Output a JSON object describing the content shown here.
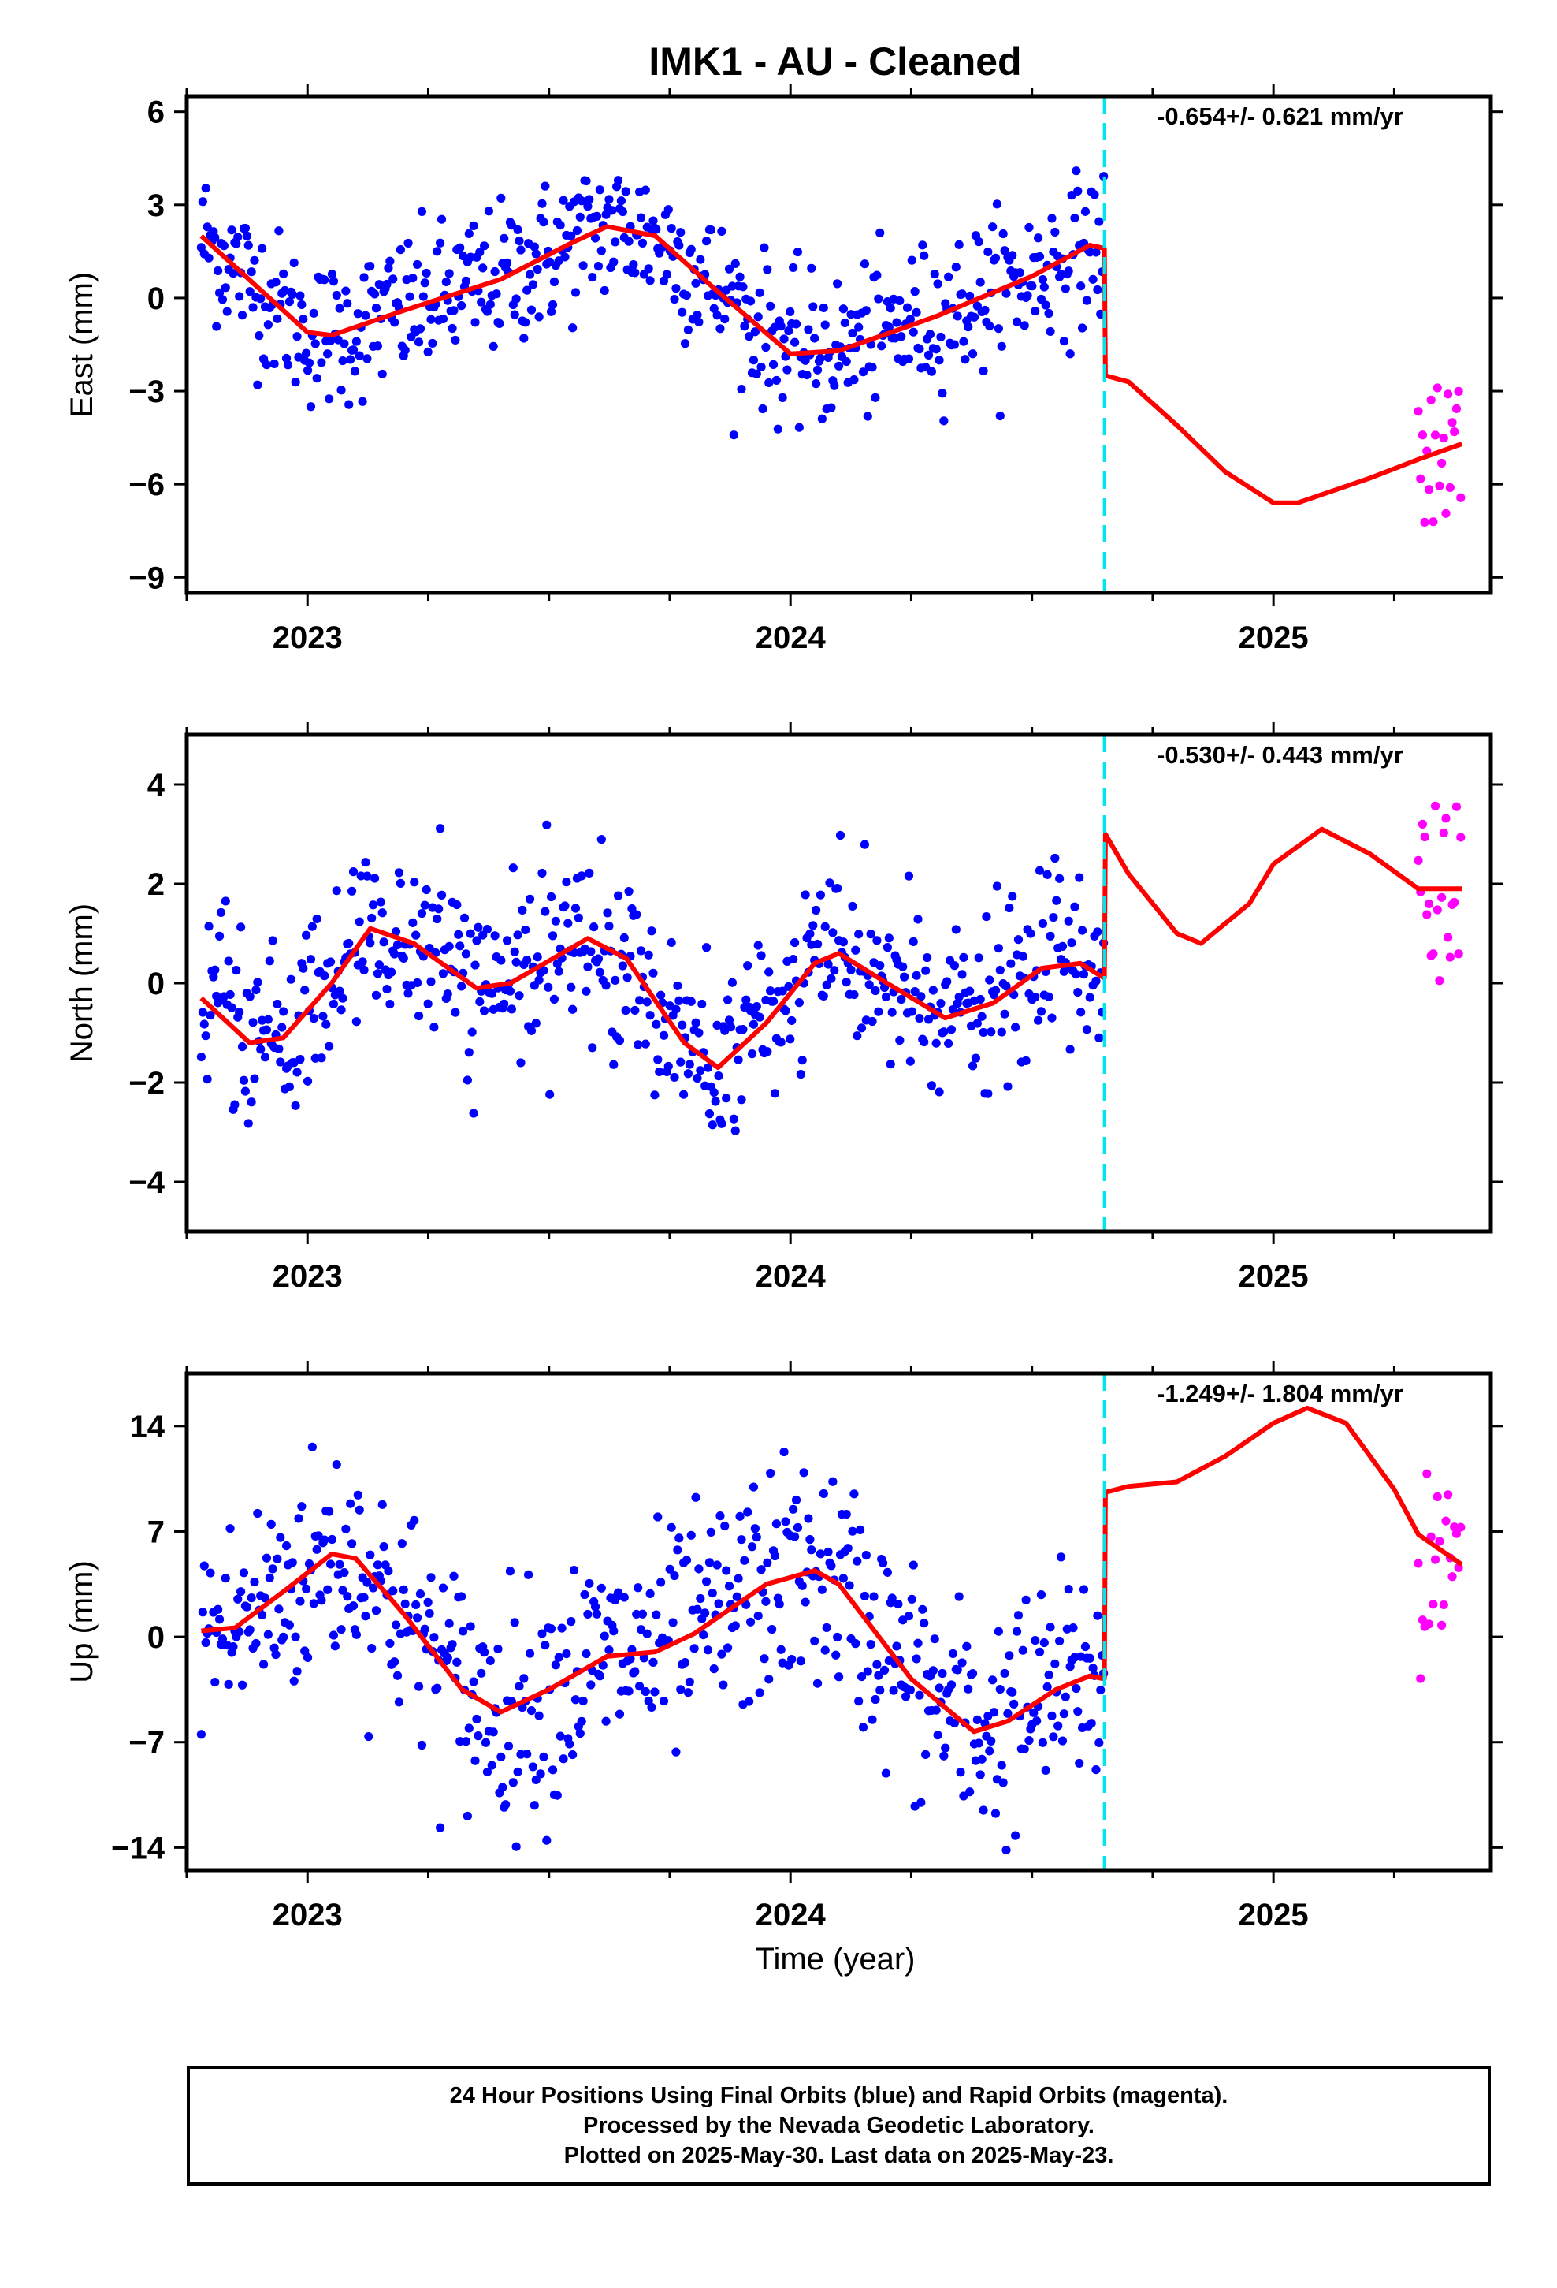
{
  "title": "IMK1  - AU - Cleaned",
  "xlabel": "Time (year)",
  "caption": {
    "line1": "24 Hour Positions Using Final Orbits (blue) and Rapid Orbits (magenta).",
    "line2": "Processed by the Nevada Geodetic Laboratory.",
    "line3": "Plotted on 2025-May-30. Last data on 2025-May-23."
  },
  "colors": {
    "final_orbit_points": "#0000ff",
    "rapid_orbit_points": "#ff00ff",
    "model_fit": "#ff0000",
    "equipment_change": "#00e5ee"
  },
  "chart_data": [
    {
      "type": "scatter",
      "ylabel": "East (mm)",
      "rate": "-0.654+/- 0.621 mm/yr",
      "xlim": [
        2022.75,
        2025.45
      ],
      "ylim": [
        -9.5,
        6.5
      ],
      "yticks": [
        6,
        3,
        0,
        -3,
        -6,
        -9
      ],
      "xticks": [
        2023,
        2024,
        2025
      ],
      "discontinuity_x": 2024.65,
      "final_range": [
        2022.78,
        2024.65
      ],
      "rapid_range": [
        2025.3,
        2025.39
      ],
      "fit": [
        [
          2022.78,
          2.0
        ],
        [
          2022.9,
          0.3
        ],
        [
          2023.0,
          -1.1
        ],
        [
          2023.05,
          -1.2
        ],
        [
          2023.2,
          -0.4
        ],
        [
          2023.4,
          0.6
        ],
        [
          2023.55,
          1.8
        ],
        [
          2023.62,
          2.3
        ],
        [
          2023.72,
          2.0
        ],
        [
          2023.85,
          0.2
        ],
        [
          2024.0,
          -1.8
        ],
        [
          2024.1,
          -1.7
        ],
        [
          2024.3,
          -0.6
        ],
        [
          2024.5,
          0.7
        ],
        [
          2024.62,
          1.7
        ],
        [
          2024.65,
          1.6
        ],
        [
          2024.652,
          -2.5
        ],
        [
          2024.7,
          -2.7
        ],
        [
          2024.8,
          -4.1
        ],
        [
          2024.9,
          -5.6
        ],
        [
          2025.0,
          -6.6
        ],
        [
          2025.05,
          -6.6
        ],
        [
          2025.2,
          -5.8
        ],
        [
          2025.3,
          -5.2
        ],
        [
          2025.39,
          -4.7
        ]
      ],
      "noise": 1.2,
      "rapid_spread": 2.8,
      "rapid_center": -5.0
    },
    {
      "type": "scatter",
      "ylabel": "North (mm)",
      "rate": "-0.530+/- 0.443 mm/yr",
      "xlim": [
        2022.75,
        2025.45
      ],
      "ylim": [
        -5.0,
        5.0
      ],
      "yticks": [
        4,
        2,
        0,
        -2,
        -4
      ],
      "xticks": [
        2023,
        2024,
        2025
      ],
      "discontinuity_x": 2024.65,
      "final_range": [
        2022.78,
        2024.65
      ],
      "rapid_range": [
        2025.3,
        2025.39
      ],
      "fit": [
        [
          2022.78,
          -0.3
        ],
        [
          2022.88,
          -1.2
        ],
        [
          2022.95,
          -1.1
        ],
        [
          2023.05,
          0.0
        ],
        [
          2023.13,
          1.1
        ],
        [
          2023.22,
          0.8
        ],
        [
          2023.35,
          -0.1
        ],
        [
          2023.42,
          0.0
        ],
        [
          2023.58,
          0.9
        ],
        [
          2023.66,
          0.5
        ],
        [
          2023.78,
          -1.2
        ],
        [
          2023.85,
          -1.7
        ],
        [
          2023.95,
          -0.8
        ],
        [
          2024.05,
          0.4
        ],
        [
          2024.1,
          0.6
        ],
        [
          2024.2,
          0.0
        ],
        [
          2024.32,
          -0.7
        ],
        [
          2024.42,
          -0.4
        ],
        [
          2024.52,
          0.3
        ],
        [
          2024.6,
          0.4
        ],
        [
          2024.65,
          0.1
        ],
        [
          2024.652,
          3.0
        ],
        [
          2024.7,
          2.2
        ],
        [
          2024.8,
          1.0
        ],
        [
          2024.85,
          0.8
        ],
        [
          2024.95,
          1.6
        ],
        [
          2025.0,
          2.4
        ],
        [
          2025.1,
          3.1
        ],
        [
          2025.2,
          2.6
        ],
        [
          2025.3,
          1.9
        ],
        [
          2025.39,
          1.9
        ]
      ],
      "noise": 0.9,
      "rapid_spread": 2.6,
      "rapid_center": 1.6
    },
    {
      "type": "scatter",
      "ylabel": "Up (mm)",
      "rate": "-1.249+/- 1.804 mm/yr",
      "xlim": [
        2022.75,
        2025.45
      ],
      "ylim": [
        -15.5,
        17.5
      ],
      "yticks": [
        14,
        7,
        0,
        -7,
        -14
      ],
      "xticks": [
        2023,
        2024,
        2025
      ],
      "discontinuity_x": 2024.65,
      "final_range": [
        2022.78,
        2024.65
      ],
      "rapid_range": [
        2025.3,
        2025.39
      ],
      "fit": [
        [
          2022.78,
          0.4
        ],
        [
          2022.85,
          0.6
        ],
        [
          2022.95,
          3.0
        ],
        [
          2023.05,
          5.5
        ],
        [
          2023.1,
          5.2
        ],
        [
          2023.2,
          1.5
        ],
        [
          2023.32,
          -3.5
        ],
        [
          2023.4,
          -5.0
        ],
        [
          2023.5,
          -3.5
        ],
        [
          2023.62,
          -1.3
        ],
        [
          2023.72,
          -1.0
        ],
        [
          2023.8,
          0.2
        ],
        [
          2023.95,
          3.5
        ],
        [
          2024.05,
          4.4
        ],
        [
          2024.1,
          3.5
        ],
        [
          2024.25,
          -2.8
        ],
        [
          2024.38,
          -6.3
        ],
        [
          2024.45,
          -5.6
        ],
        [
          2024.55,
          -3.5
        ],
        [
          2024.62,
          -2.6
        ],
        [
          2024.65,
          -2.8
        ],
        [
          2024.652,
          9.6
        ],
        [
          2024.7,
          10.0
        ],
        [
          2024.8,
          10.3
        ],
        [
          2024.9,
          12.0
        ],
        [
          2025.0,
          14.2
        ],
        [
          2025.07,
          15.2
        ],
        [
          2025.15,
          14.2
        ],
        [
          2025.25,
          9.8
        ],
        [
          2025.3,
          6.8
        ],
        [
          2025.39,
          4.8
        ]
      ],
      "noise": 3.8,
      "rapid_spread": 9.0,
      "rapid_center": 4.0
    }
  ]
}
